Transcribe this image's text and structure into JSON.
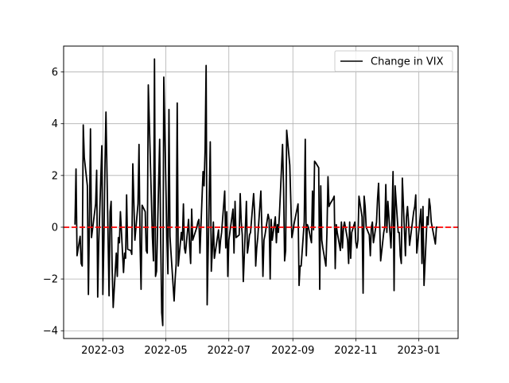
{
  "chart_data": {
    "type": "line",
    "title": "",
    "xlabel": "",
    "ylabel": "",
    "xlim": [
      "2022-01-22",
      "2023-02-08"
    ],
    "ylim": [
      -4.3,
      7.0
    ],
    "x_ticks": [
      "2022-03",
      "2022-05",
      "2022-07",
      "2022-09",
      "2022-11",
      "2023-01"
    ],
    "y_ticks": [
      -4,
      -2,
      0,
      2,
      4,
      6
    ],
    "grid": true,
    "legend_position": "upper right",
    "reference_line": {
      "y": 0,
      "color": "#ff0000",
      "style": "dashed"
    },
    "series": [
      {
        "name": "Change in VIX",
        "color": "#000000",
        "points": [
          [
            "2022-02-02",
            0.1
          ],
          [
            "2022-02-03",
            2.25
          ],
          [
            "2022-02-04",
            -1.1
          ],
          [
            "2022-02-07",
            -0.35
          ],
          [
            "2022-02-08",
            -1.4
          ],
          [
            "2022-02-09",
            -1.5
          ],
          [
            "2022-02-10",
            3.95
          ],
          [
            "2022-02-11",
            2.7
          ],
          [
            "2022-02-14",
            1.6
          ],
          [
            "2022-02-15",
            -2.6
          ],
          [
            "2022-02-16",
            0.3
          ],
          [
            "2022-02-17",
            3.8
          ],
          [
            "2022-02-18",
            -0.4
          ],
          [
            "2022-02-22",
            0.9
          ],
          [
            "2022-02-23",
            2.2
          ],
          [
            "2022-02-24",
            -2.7
          ],
          [
            "2022-02-25",
            -0.6
          ],
          [
            "2022-02-28",
            3.15
          ],
          [
            "2022-03-01",
            -2.6
          ],
          [
            "2022-03-02",
            -0.5
          ],
          [
            "2022-03-03",
            2.3
          ],
          [
            "2022-03-04",
            4.45
          ],
          [
            "2022-03-07",
            -2.65
          ],
          [
            "2022-03-08",
            0.6
          ],
          [
            "2022-03-09",
            1.0
          ],
          [
            "2022-03-10",
            -1.6
          ],
          [
            "2022-03-11",
            -3.1
          ],
          [
            "2022-03-14",
            -1.0
          ],
          [
            "2022-03-15",
            -1.9
          ],
          [
            "2022-03-16",
            -0.4
          ],
          [
            "2022-03-17",
            -0.6
          ],
          [
            "2022-03-18",
            0.6
          ],
          [
            "2022-03-21",
            -1.75
          ],
          [
            "2022-03-22",
            -1.0
          ],
          [
            "2022-03-23",
            -1.2
          ],
          [
            "2022-03-24",
            1.25
          ],
          [
            "2022-03-25",
            -0.85
          ],
          [
            "2022-03-28",
            -0.9
          ],
          [
            "2022-03-29",
            -1.05
          ],
          [
            "2022-03-30",
            2.45
          ],
          [
            "2022-03-31",
            1.0
          ],
          [
            "2022-04-01",
            -0.5
          ],
          [
            "2022-04-04",
            0.9
          ],
          [
            "2022-04-05",
            3.2
          ],
          [
            "2022-04-06",
            -0.6
          ],
          [
            "2022-04-07",
            -2.4
          ],
          [
            "2022-04-08",
            0.85
          ],
          [
            "2022-04-11",
            0.6
          ],
          [
            "2022-04-12",
            -0.9
          ],
          [
            "2022-04-13",
            -1.0
          ],
          [
            "2022-04-14",
            5.5
          ],
          [
            "2022-04-18",
            -0.4
          ],
          [
            "2022-04-19",
            -1.3
          ],
          [
            "2022-04-20",
            6.5
          ],
          [
            "2022-04-21",
            -1.9
          ],
          [
            "2022-04-22",
            -1.7
          ],
          [
            "2022-04-25",
            3.4
          ],
          [
            "2022-04-26",
            -0.5
          ],
          [
            "2022-04-27",
            -3.3
          ],
          [
            "2022-04-28",
            -3.8
          ],
          [
            "2022-04-29",
            5.8
          ],
          [
            "2022-05-02",
            -0.4
          ],
          [
            "2022-05-03",
            -1.8
          ],
          [
            "2022-05-04",
            4.55
          ],
          [
            "2022-05-05",
            -0.35
          ],
          [
            "2022-05-06",
            -1.0
          ],
          [
            "2022-05-09",
            -2.85
          ],
          [
            "2022-05-10",
            -2.0
          ],
          [
            "2022-05-11",
            -1.4
          ],
          [
            "2022-05-12",
            4.8
          ],
          [
            "2022-05-13",
            -1.5
          ],
          [
            "2022-05-16",
            -0.2
          ],
          [
            "2022-05-17",
            -0.5
          ],
          [
            "2022-05-18",
            0.9
          ],
          [
            "2022-05-19",
            -0.8
          ],
          [
            "2022-05-20",
            -1.0
          ],
          [
            "2022-05-23",
            0.3
          ],
          [
            "2022-05-24",
            -0.7
          ],
          [
            "2022-05-25",
            -1.4
          ],
          [
            "2022-05-26",
            0.7
          ],
          [
            "2022-05-27",
            -0.5
          ],
          [
            "2022-05-31",
            0.0
          ],
          [
            "2022-06-01",
            0.2
          ],
          [
            "2022-06-02",
            0.3
          ],
          [
            "2022-06-03",
            -1.0
          ],
          [
            "2022-06-06",
            2.15
          ],
          [
            "2022-06-07",
            1.6
          ],
          [
            "2022-06-08",
            3.0
          ],
          [
            "2022-06-09",
            6.25
          ],
          [
            "2022-06-10",
            -3.0
          ],
          [
            "2022-06-13",
            3.3
          ],
          [
            "2022-06-14",
            -1.7
          ],
          [
            "2022-06-15",
            -0.9
          ],
          [
            "2022-06-16",
            0.2
          ],
          [
            "2022-06-17",
            -1.2
          ],
          [
            "2022-06-21",
            -0.1
          ],
          [
            "2022-06-22",
            -1.0
          ],
          [
            "2022-06-23",
            -0.5
          ],
          [
            "2022-06-24",
            -0.2
          ],
          [
            "2022-06-27",
            1.4
          ],
          [
            "2022-06-28",
            -0.8
          ],
          [
            "2022-06-29",
            0.6
          ],
          [
            "2022-06-30",
            -1.9
          ],
          [
            "2022-07-01",
            -0.5
          ],
          [
            "2022-07-05",
            0.7
          ],
          [
            "2022-07-06",
            -1.0
          ],
          [
            "2022-07-07",
            1.0
          ],
          [
            "2022-07-08",
            -0.4
          ],
          [
            "2022-07-11",
            -0.3
          ],
          [
            "2022-07-12",
            1.3
          ],
          [
            "2022-07-13",
            0.2
          ],
          [
            "2022-07-14",
            -0.3
          ],
          [
            "2022-07-15",
            -2.1
          ],
          [
            "2022-07-18",
            1.0
          ],
          [
            "2022-07-19",
            -1.0
          ],
          [
            "2022-07-20",
            -0.7
          ],
          [
            "2022-07-21",
            -0.3
          ],
          [
            "2022-07-22",
            -0.2
          ],
          [
            "2022-07-25",
            1.3
          ],
          [
            "2022-07-26",
            0.5
          ],
          [
            "2022-07-27",
            -1.5
          ],
          [
            "2022-07-28",
            -0.8
          ],
          [
            "2022-07-29",
            -0.4
          ],
          [
            "2022-08-01",
            1.4
          ],
          [
            "2022-08-02",
            -0.1
          ],
          [
            "2022-08-03",
            -1.9
          ],
          [
            "2022-08-04",
            -0.5
          ],
          [
            "2022-08-05",
            -0.3
          ],
          [
            "2022-08-08",
            0.5
          ],
          [
            "2022-08-09",
            0.3
          ],
          [
            "2022-08-10",
            -2.0
          ],
          [
            "2022-08-11",
            0.3
          ],
          [
            "2022-08-12",
            -0.5
          ],
          [
            "2022-08-15",
            0.4
          ],
          [
            "2022-08-16",
            -0.6
          ],
          [
            "2022-08-17",
            0.1
          ],
          [
            "2022-08-18",
            -0.2
          ],
          [
            "2022-08-19",
            0.5
          ],
          [
            "2022-08-22",
            3.2
          ],
          [
            "2022-08-23",
            1.5
          ],
          [
            "2022-08-24",
            -1.3
          ],
          [
            "2022-08-25",
            -0.9
          ],
          [
            "2022-08-26",
            3.75
          ],
          [
            "2022-08-29",
            2.4
          ],
          [
            "2022-08-30",
            1.0
          ],
          [
            "2022-08-31",
            -0.4
          ],
          [
            "2022-09-01",
            -0.2
          ],
          [
            "2022-09-02",
            0.1
          ],
          [
            "2022-09-06",
            0.9
          ],
          [
            "2022-09-07",
            -2.25
          ],
          [
            "2022-09-08",
            -1.5
          ],
          [
            "2022-09-09",
            -1.5
          ],
          [
            "2022-09-12",
            0.2
          ],
          [
            "2022-09-13",
            3.4
          ],
          [
            "2022-09-14",
            -1.1
          ],
          [
            "2022-09-15",
            0.1
          ],
          [
            "2022-09-16",
            0.0
          ],
          [
            "2022-09-19",
            -0.6
          ],
          [
            "2022-09-20",
            1.4
          ],
          [
            "2022-09-21",
            -0.1
          ],
          [
            "2022-09-22",
            2.55
          ],
          [
            "2022-09-23",
            2.5
          ],
          [
            "2022-09-26",
            2.3
          ],
          [
            "2022-09-27",
            -2.4
          ],
          [
            "2022-09-28",
            1.6
          ],
          [
            "2022-09-29",
            -0.5
          ],
          [
            "2022-09-30",
            -0.8
          ],
          [
            "2022-10-03",
            -1.5
          ],
          [
            "2022-10-04",
            -0.2
          ],
          [
            "2022-10-05",
            1.95
          ],
          [
            "2022-10-06",
            0.8
          ],
          [
            "2022-10-07",
            0.9
          ],
          [
            "2022-10-10",
            1.1
          ],
          [
            "2022-10-11",
            1.2
          ],
          [
            "2022-10-12",
            -1.6
          ],
          [
            "2022-10-13",
            0.1
          ],
          [
            "2022-10-14",
            -0.2
          ],
          [
            "2022-10-17",
            -0.9
          ],
          [
            "2022-10-18",
            0.2
          ],
          [
            "2022-10-19",
            -0.8
          ],
          [
            "2022-10-20",
            0.0
          ],
          [
            "2022-10-21",
            0.2
          ],
          [
            "2022-10-24",
            -0.5
          ],
          [
            "2022-10-25",
            -1.4
          ],
          [
            "2022-10-26",
            0.2
          ],
          [
            "2022-10-27",
            -1.2
          ],
          [
            "2022-10-28",
            -0.2
          ],
          [
            "2022-10-31",
            0.2
          ],
          [
            "2022-11-01",
            -0.6
          ],
          [
            "2022-11-02",
            -0.8
          ],
          [
            "2022-11-03",
            -0.5
          ],
          [
            "2022-11-04",
            1.2
          ],
          [
            "2022-11-07",
            0.4
          ],
          [
            "2022-11-08",
            -2.55
          ],
          [
            "2022-11-09",
            1.2
          ],
          [
            "2022-11-10",
            0.8
          ],
          [
            "2022-11-11",
            0.0
          ],
          [
            "2022-11-14",
            -0.3
          ],
          [
            "2022-11-15",
            -1.1
          ],
          [
            "2022-11-16",
            0.0
          ],
          [
            "2022-11-17",
            0.2
          ],
          [
            "2022-11-18",
            -0.6
          ],
          [
            "2022-11-21",
            0.2
          ],
          [
            "2022-11-22",
            1.1
          ],
          [
            "2022-11-23",
            1.7
          ],
          [
            "2022-11-25",
            -1.3
          ],
          [
            "2022-11-28",
            -0.2
          ],
          [
            "2022-11-29",
            0.0
          ],
          [
            "2022-11-30",
            1.65
          ],
          [
            "2022-12-01",
            -0.2
          ],
          [
            "2022-12-02",
            1.0
          ],
          [
            "2022-12-05",
            -0.8
          ],
          [
            "2022-12-06",
            0.4
          ],
          [
            "2022-12-07",
            2.15
          ],
          [
            "2022-12-08",
            -2.45
          ],
          [
            "2022-12-09",
            1.6
          ],
          [
            "2022-12-12",
            -0.2
          ],
          [
            "2022-12-13",
            -0.2
          ],
          [
            "2022-12-14",
            -1.1
          ],
          [
            "2022-12-15",
            -1.4
          ],
          [
            "2022-12-16",
            1.9
          ],
          [
            "2022-12-19",
            -1.1
          ],
          [
            "2022-12-20",
            0.4
          ],
          [
            "2022-12-21",
            0.8
          ],
          [
            "2022-12-22",
            0.2
          ],
          [
            "2022-12-23",
            -0.7
          ],
          [
            "2022-12-27",
            0.6
          ],
          [
            "2022-12-28",
            0.8
          ],
          [
            "2022-12-29",
            1.25
          ],
          [
            "2022-12-30",
            -1.0
          ],
          [
            "2023-01-03",
            0.7
          ],
          [
            "2023-01-04",
            -1.4
          ],
          [
            "2023-01-05",
            0.8
          ],
          [
            "2023-01-06",
            -2.25
          ],
          [
            "2023-01-09",
            0.4
          ],
          [
            "2023-01-10",
            0.1
          ],
          [
            "2023-01-11",
            1.1
          ],
          [
            "2023-01-12",
            0.8
          ],
          [
            "2023-01-13",
            0.2
          ],
          [
            "2023-01-17",
            -0.65
          ],
          [
            "2023-01-18",
            0.0
          ],
          [
            "2023-01-19",
            0.0
          ]
        ]
      }
    ]
  }
}
